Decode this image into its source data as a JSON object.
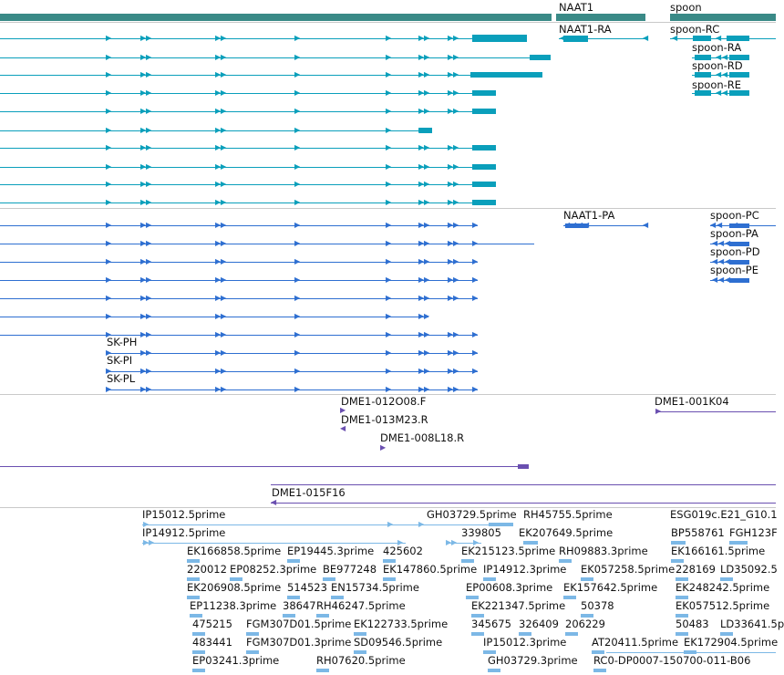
{
  "genes": {
    "labels": [
      "NAAT1",
      "spoon"
    ]
  },
  "transcripts_cds": {
    "labels": [
      "NAAT1-RA",
      "spoon-RC",
      "spoon-RA",
      "spoon-RD",
      "spoon-RE"
    ]
  },
  "transcripts_protein": {
    "labels": [
      "NAAT1-PA",
      "spoon-PC",
      "spoon-PA",
      "spoon-PD",
      "spoon-PE",
      "SK-PH",
      "SK-PI",
      "SK-PL"
    ]
  },
  "clones": {
    "labels": [
      "DME1-012O08.F",
      "DME1-013M23.R",
      "DME1-008L18.R",
      "DME1-001K04",
      "DME1-015F16"
    ]
  },
  "ests": {
    "labels": [
      "IP15012.5prime",
      "GH03729.5prime",
      "RH45755.5prime",
      "ESG019c.E21_G10.1",
      "IP14912.5prime",
      "339805",
      "EK207649.5prime",
      "BP558761",
      "FGH123F",
      "EK166858.5prime",
      "EP19445.3prime",
      "425602",
      "EK215123.5prime",
      "RH09883.3prime",
      "EK166161.5prime",
      "220012",
      "EP08252.3prime",
      "BE977248",
      "EK147860.5prime",
      "IP14912.3prime",
      "EK057258.5prime",
      "228169",
      "LD35092.5",
      "EK206908.5prime",
      "514523",
      "EN15734.5prime",
      "EP00608.3prime",
      "EK157642.5prime",
      "EK248242.5prime",
      "EP11238.3prime",
      "38647",
      "RH46247.5prime",
      "EK221347.5prime",
      "50378",
      "EK057512.5prime",
      "475215",
      "FGM307D01.5prime",
      "EK122733.5prime",
      "345675",
      "326409",
      "206229",
      "50483",
      "LD33641.5p",
      "483441",
      "FGM307D01.3prime",
      "SD09546.5prime",
      "IP15012.3prime",
      "AT20411.5prime",
      "EK172904.5prime",
      "EP03241.3prime",
      "RH07620.5prime",
      "GH03729.3prime",
      "RC0-DP0007-150700-011-B06"
    ]
  },
  "colors": {
    "gene": "#3a8a87",
    "transcript_cds": "#0a9fbb",
    "transcript_protein": "#2e6fd1",
    "clone": "#6a4fb0",
    "est": "#7cb8e6",
    "separator": "#c9c9c9"
  },
  "icons": {
    "strand_forward": "forward-arrow-icon",
    "strand_reverse": "reverse-arrow-icon"
  }
}
